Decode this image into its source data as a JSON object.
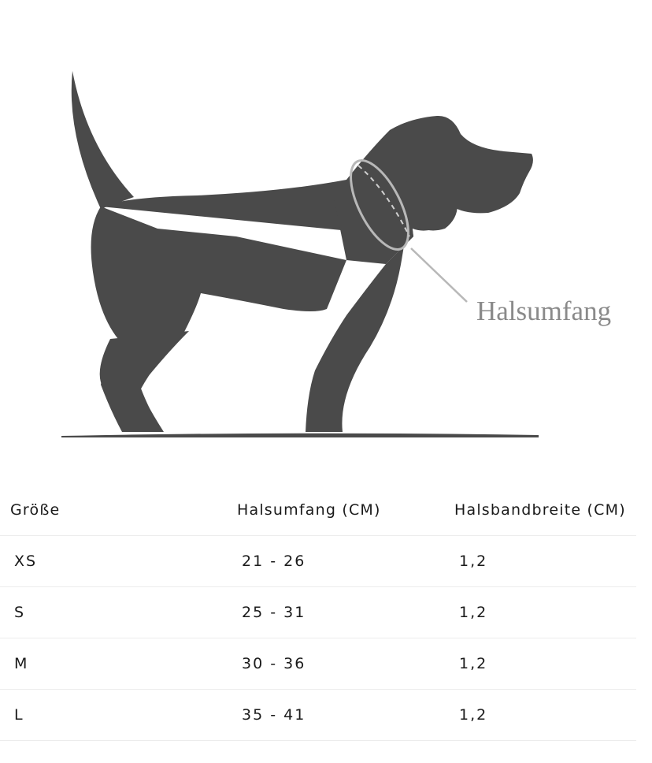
{
  "illustration": {
    "label": "Halsumfang",
    "icon": "dog-silhouette"
  },
  "table": {
    "headers": [
      "Größe",
      "Halsumfang (CM)",
      "Halsbandbreite (CM)"
    ],
    "rows": [
      [
        "XS",
        "21 - 26",
        "1,2"
      ],
      [
        "S",
        "25 - 31",
        "1,2"
      ],
      [
        "M",
        "30 - 36",
        "1,2"
      ],
      [
        "L",
        "35 - 41",
        "1,2"
      ]
    ]
  },
  "colors": {
    "silhouette": "#4a4a4a",
    "label": "#8a8a8a",
    "collar": "#b8b8b8",
    "divider": "#ececec"
  }
}
